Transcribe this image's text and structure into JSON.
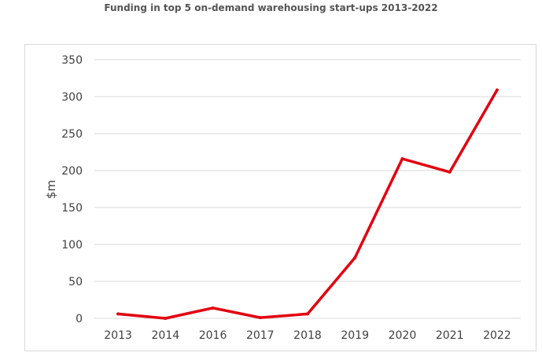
{
  "chart_data": {
    "type": "line",
    "title": "Funding in top 5 on-demand warehousing start-ups 2013-2022",
    "xlabel": "",
    "ylabel": "$m",
    "categories": [
      "2013",
      "2014",
      "2016",
      "2017",
      "2018",
      "2019",
      "2020",
      "2021",
      "2022"
    ],
    "series": [
      {
        "values": [
          6,
          0,
          14,
          1,
          6,
          82,
          216,
          198,
          309
        ]
      }
    ],
    "ylim": [
      0,
      350
    ],
    "yticks": [
      0,
      50,
      100,
      150,
      200,
      250,
      300,
      350
    ],
    "grid": true,
    "legend": "none",
    "colors": {
      "line": "#e3000f",
      "grid": "#d9d9d9",
      "text": "#404040"
    }
  }
}
